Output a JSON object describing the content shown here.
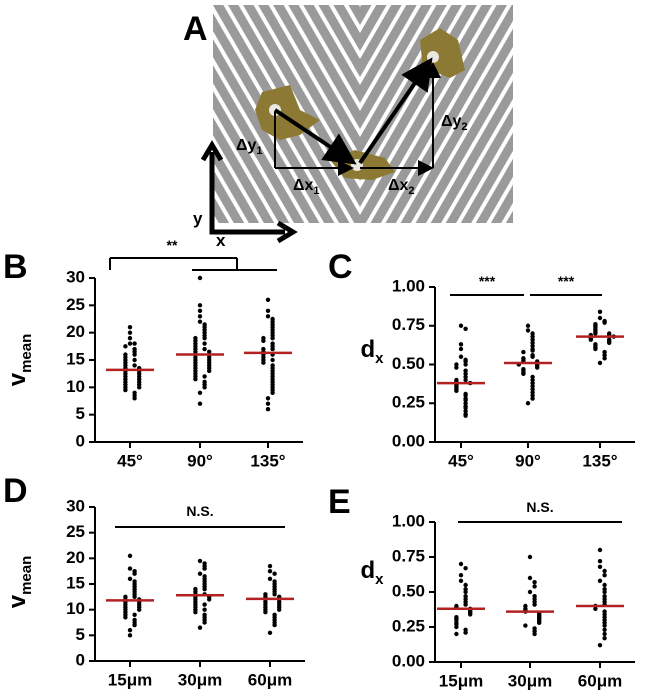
{
  "diagram": {
    "panel": "A",
    "x_label": "x",
    "y_label": "y",
    "labels": [
      {
        "main": "Δy",
        "sub": "1"
      },
      {
        "main": "Δx",
        "sub": "1"
      },
      {
        "main": "Δx",
        "sub": "2"
      },
      {
        "main": "Δy",
        "sub": "2"
      }
    ]
  },
  "chart_data": [
    {
      "type": "dot",
      "panel": "B",
      "ylabel": "v",
      "ylabel_sub": "mean",
      "categories": [
        "45°",
        "90°",
        "135°"
      ],
      "mean_color": "#b22222",
      "groups": [
        {
          "mean": 13.2,
          "values": [
            21,
            20,
            19,
            18,
            18,
            17.5,
            17,
            16.5,
            16,
            16,
            15.5,
            15,
            15,
            14.5,
            14,
            14,
            13.5,
            13.5,
            13,
            13,
            12.5,
            12.5,
            12,
            12,
            11.5,
            11.5,
            11,
            11,
            10.5,
            10.5,
            10,
            10,
            9.5,
            9,
            8.5,
            8
          ]
        },
        {
          "mean": 16,
          "values": [
            30,
            25,
            24,
            23,
            22,
            21.5,
            21,
            20.5,
            20,
            19.5,
            19,
            19,
            18.5,
            18,
            18,
            17.5,
            17,
            17,
            16.5,
            16.5,
            16,
            16,
            15.5,
            15.5,
            15,
            15,
            14.5,
            14.5,
            14,
            14,
            13.5,
            13.5,
            13,
            13,
            12.5,
            12,
            12,
            11.5,
            11,
            10.5,
            10,
            9,
            7
          ]
        },
        {
          "mean": 16.3,
          "values": [
            26,
            24,
            23,
            22.5,
            22,
            21.5,
            21,
            20.5,
            20,
            19.5,
            19,
            19,
            18.5,
            18,
            17.5,
            17,
            17,
            16.5,
            16,
            16,
            15.5,
            15,
            15,
            14.5,
            14,
            13.5,
            13,
            12.5,
            12,
            11.5,
            11,
            10.5,
            10,
            9.5,
            9,
            8,
            7,
            6
          ]
        }
      ],
      "ylim": [
        0,
        30
      ],
      "yticks": [
        0,
        5,
        10,
        15,
        20,
        25,
        30
      ],
      "significance": [
        {
          "label": "**"
        }
      ]
    },
    {
      "type": "dot",
      "panel": "C",
      "ylabel": "d",
      "ylabel_sub": "x",
      "categories": [
        "45°",
        "90°",
        "135°"
      ],
      "mean_color": "#b22222",
      "groups": [
        {
          "mean": 0.38,
          "values": [
            0.75,
            0.73,
            0.63,
            0.6,
            0.55,
            0.53,
            0.52,
            0.5,
            0.5,
            0.48,
            0.46,
            0.44,
            0.42,
            0.4,
            0.4,
            0.39,
            0.38,
            0.37,
            0.36,
            0.35,
            0.34,
            0.33,
            0.31,
            0.3,
            0.28,
            0.27,
            0.25,
            0.23,
            0.22,
            0.2,
            0.18,
            0.17
          ]
        },
        {
          "mean": 0.51,
          "values": [
            0.75,
            0.72,
            0.7,
            0.68,
            0.66,
            0.64,
            0.62,
            0.6,
            0.59,
            0.58,
            0.56,
            0.55,
            0.54,
            0.53,
            0.52,
            0.52,
            0.51,
            0.5,
            0.5,
            0.49,
            0.48,
            0.47,
            0.46,
            0.45,
            0.44,
            0.42,
            0.4,
            0.38,
            0.36,
            0.34,
            0.32,
            0.3,
            0.28,
            0.25
          ]
        },
        {
          "mean": 0.68,
          "values": [
            0.84,
            0.8,
            0.78,
            0.77,
            0.76,
            0.75,
            0.74,
            0.73,
            0.72,
            0.71,
            0.7,
            0.7,
            0.69,
            0.69,
            0.68,
            0.68,
            0.67,
            0.66,
            0.66,
            0.65,
            0.64,
            0.63,
            0.62,
            0.61,
            0.6,
            0.58,
            0.56,
            0.54,
            0.51
          ]
        }
      ],
      "ylim": [
        0,
        1
      ],
      "yticks": [
        {
          "value": 0,
          "label": "0.00"
        },
        0.25,
        {
          "value": 0.5,
          "label": "0.50"
        },
        0.75,
        {
          "value": 1,
          "label": "1.00"
        }
      ],
      "significance": [
        {
          "label": "***"
        },
        {
          "label": "***"
        }
      ]
    },
    {
      "type": "dot",
      "panel": "D",
      "ylabel": "v",
      "ylabel_sub": "mean",
      "categories": [
        "15μm",
        "30μm",
        "60μm"
      ],
      "mean_color": "#b22222",
      "groups": [
        {
          "mean": 11.8,
          "values": [
            20.5,
            18,
            17.5,
            17,
            16,
            15.5,
            15,
            14.5,
            14,
            13.5,
            13,
            12.5,
            12.5,
            12,
            12,
            11.5,
            11.5,
            11,
            11,
            10.5,
            10.5,
            10,
            10,
            9.5,
            9,
            9,
            8.5,
            8,
            7.5,
            7,
            6,
            5
          ]
        },
        {
          "mean": 12.8,
          "values": [
            19.5,
            19,
            18.5,
            18,
            17,
            16.5,
            16,
            15.5,
            15,
            14.5,
            14,
            14,
            13.5,
            13,
            13,
            12.5,
            12.5,
            12,
            12,
            11.5,
            11,
            11,
            10.5,
            10,
            10,
            9.5,
            9,
            8.5,
            8,
            7.5,
            6.5
          ]
        },
        {
          "mean": 12.1,
          "values": [
            18.5,
            17.5,
            17,
            16,
            15.5,
            15,
            14.5,
            14,
            13.5,
            13,
            13,
            12.5,
            12.5,
            12,
            12,
            11.5,
            11.5,
            11,
            11,
            10.5,
            10.5,
            10,
            10,
            9.5,
            9,
            8.5,
            8,
            7.5,
            7,
            5.5
          ]
        }
      ],
      "ylim": [
        0,
        30
      ],
      "yticks": [
        0,
        5,
        10,
        15,
        20,
        25,
        30
      ],
      "significance": [
        {
          "label": "N.S."
        }
      ]
    },
    {
      "type": "dot",
      "panel": "E",
      "ylabel": "d",
      "ylabel_sub": "x",
      "categories": [
        "15μm",
        "30μm",
        "60μm"
      ],
      "mean_color": "#b22222",
      "groups": [
        {
          "mean": 0.38,
          "values": [
            0.7,
            0.67,
            0.62,
            0.58,
            0.55,
            0.52,
            0.5,
            0.47,
            0.45,
            0.43,
            0.41,
            0.4,
            0.39,
            0.38,
            0.37,
            0.36,
            0.35,
            0.34,
            0.32,
            0.31,
            0.3,
            0.28,
            0.27,
            0.25,
            0.23,
            0.21,
            0.2
          ]
        },
        {
          "mean": 0.36,
          "values": [
            0.75,
            0.6,
            0.57,
            0.54,
            0.5,
            0.47,
            0.45,
            0.43,
            0.41,
            0.4,
            0.38,
            0.37,
            0.36,
            0.35,
            0.34,
            0.33,
            0.32,
            0.31,
            0.3,
            0.29,
            0.28,
            0.26,
            0.24,
            0.22,
            0.2
          ]
        },
        {
          "mean": 0.4,
          "values": [
            0.8,
            0.72,
            0.68,
            0.65,
            0.62,
            0.58,
            0.55,
            0.52,
            0.5,
            0.47,
            0.45,
            0.43,
            0.41,
            0.4,
            0.38,
            0.36,
            0.34,
            0.32,
            0.3,
            0.28,
            0.26,
            0.23,
            0.2,
            0.17,
            0.12
          ]
        }
      ],
      "ylim": [
        0,
        1
      ],
      "yticks": [
        {
          "value": 0,
          "label": "0.00"
        },
        0.25,
        {
          "value": 0.5,
          "label": "0.50"
        },
        0.75,
        {
          "value": 1,
          "label": "1.00"
        }
      ],
      "significance": [
        {
          "label": "N.S."
        }
      ]
    }
  ]
}
